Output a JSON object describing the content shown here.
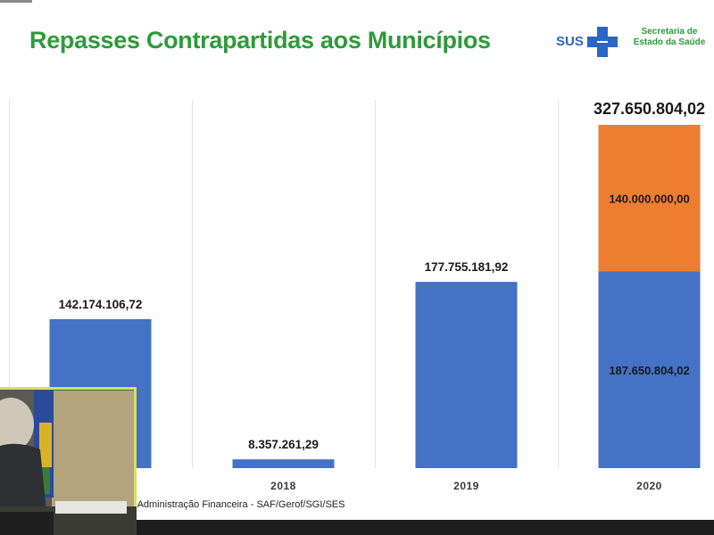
{
  "title": "Repasses Contrapartidas aos Municípios",
  "logo": {
    "sus_text": "SUS",
    "org_text": "Secretaria de Estado da Saúde",
    "sus_color": "#2b66c3",
    "org_color": "#2e9a3a"
  },
  "caption": "e Administração Financeira - SAF/Gerof/SGI/SES",
  "colors": {
    "title": "#2e9a3a",
    "bar_primary": "#4472c4",
    "bar_secondary": "#ed7d31",
    "grid": "#e2e2e2"
  },
  "chart_data": {
    "type": "bar",
    "stacked": true,
    "categories": [
      "",
      "2018",
      "2019",
      "2020"
    ],
    "series": [
      {
        "name": "",
        "color": "#4472c4",
        "values": [
          142174106.72,
          8357261.29,
          177755181.92,
          187650804.02
        ]
      },
      {
        "name": "",
        "color": "#ed7d31",
        "values": [
          0,
          0,
          0,
          140000000.0
        ]
      }
    ],
    "segment_labels": [
      [
        "",
        "",
        "",
        "187.650.804,02"
      ],
      [
        "",
        "",
        "",
        "140.000.000,00"
      ]
    ],
    "total_labels": [
      "142.174.106,72",
      "8.357.261,29",
      "177.755.181,92",
      "327.650.804,02"
    ],
    "ylim": [
      0,
      327650804.02
    ],
    "grid": "vertical separators",
    "legend": "none"
  }
}
